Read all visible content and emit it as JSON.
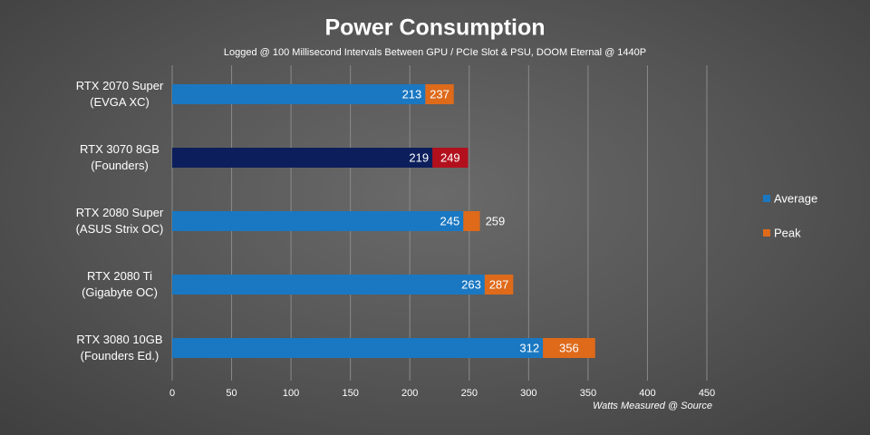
{
  "chart_data": {
    "type": "bar",
    "orientation": "horizontal",
    "title": "Power Consumption",
    "subtitle": "Logged @ 100 Millisecond Intervals Between GPU / PCIe Slot & PSU, DOOM Eternal @ 1440P",
    "x_label": "Watts Measured @ Source",
    "categories": [
      "RTX 2070 Super\n(EVGA XC)",
      "RTX 3070 8GB\n(Founders)",
      "RTX 2080 Super\n(ASUS Strix OC)",
      "RTX 2080 Ti\n(Gigabyte OC)",
      "RTX 3080 10GB\n(Founders Ed.)"
    ],
    "series": [
      {
        "name": "Average",
        "color": "#1a78c2",
        "colors": [
          "#1a78c2",
          "#0c1f5c",
          "#1a78c2",
          "#1a78c2",
          "#1a78c2"
        ],
        "values": [
          213,
          219,
          245,
          263,
          312
        ]
      },
      {
        "name": "Peak",
        "color": "#de6a1a",
        "colors": [
          "#de6a1a",
          "#b3101e",
          "#de6a1a",
          "#de6a1a",
          "#de6a1a"
        ],
        "values": [
          237,
          249,
          259,
          287,
          356
        ]
      }
    ],
    "xlim": [
      0,
      450
    ],
    "xticks": [
      0,
      50,
      100,
      150,
      200,
      250,
      300,
      350,
      400,
      450
    ],
    "grid": true,
    "legend": "right"
  }
}
